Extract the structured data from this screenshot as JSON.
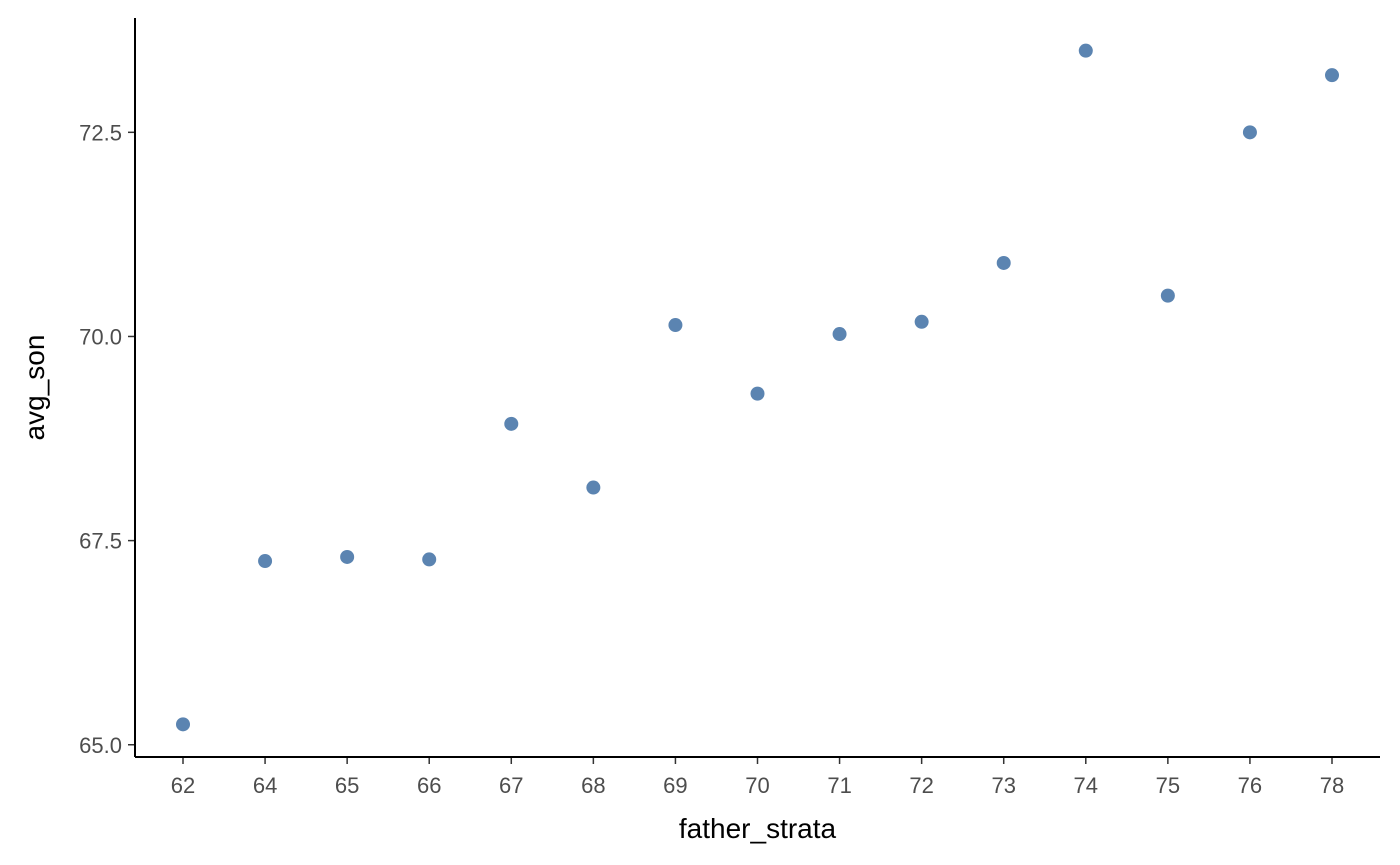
{
  "chart_data": {
    "type": "scatter",
    "title": "",
    "xlabel": "father_strata",
    "ylabel": "avg_son",
    "x_categories": [
      "62",
      "64",
      "65",
      "66",
      "67",
      "68",
      "69",
      "70",
      "71",
      "72",
      "73",
      "74",
      "75",
      "76",
      "78"
    ],
    "points": [
      {
        "x": "62",
        "y": 65.25
      },
      {
        "x": "64",
        "y": 67.25
      },
      {
        "x": "65",
        "y": 67.3
      },
      {
        "x": "66",
        "y": 67.27
      },
      {
        "x": "67",
        "y": 68.93
      },
      {
        "x": "68",
        "y": 68.15
      },
      {
        "x": "69",
        "y": 70.14
      },
      {
        "x": "70",
        "y": 69.3
      },
      {
        "x": "71",
        "y": 70.03
      },
      {
        "x": "72",
        "y": 70.18
      },
      {
        "x": "73",
        "y": 70.9
      },
      {
        "x": "74",
        "y": 73.5
      },
      {
        "x": "75",
        "y": 70.5
      },
      {
        "x": "76",
        "y": 72.5
      },
      {
        "x": "78",
        "y": 73.2
      }
    ],
    "y_ticks": [
      65.0,
      67.5,
      70.0,
      72.5
    ],
    "y_tick_labels": [
      "65.0",
      "67.5",
      "70.0",
      "72.5"
    ],
    "ylim": [
      64.85,
      73.9
    ],
    "grid": false,
    "legend": "none",
    "point_color": "#5b84b1"
  }
}
